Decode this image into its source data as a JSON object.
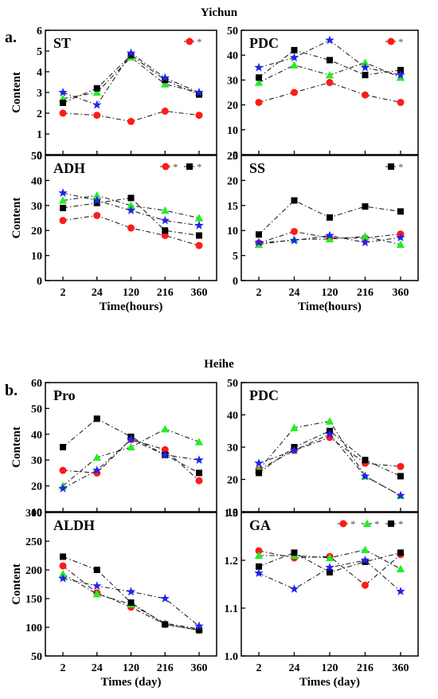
{
  "sections": [
    {
      "label": "a.",
      "title": "Yichun"
    },
    {
      "label": "b.",
      "title": "Heihe"
    }
  ],
  "colors": {
    "red": "#ff1a1a",
    "green": "#22ee22",
    "black": "#000000",
    "blue": "#2222ee",
    "line": "#222222"
  },
  "chart_data": [
    {
      "type": "line",
      "title": "ST",
      "xlabel": "",
      "ylabel": "Content",
      "categories": [
        "2",
        "24",
        "120",
        "216",
        "360"
      ],
      "ylim": [
        0,
        6
      ],
      "yticks": [
        0,
        1,
        2,
        3,
        4,
        5,
        6
      ],
      "series": [
        {
          "marker": "circle",
          "color": "red",
          "values": [
            2.0,
            1.9,
            1.6,
            2.1,
            1.9
          ]
        },
        {
          "marker": "triangle",
          "color": "green",
          "values": [
            2.7,
            3.0,
            4.7,
            3.4,
            3.0
          ]
        },
        {
          "marker": "square",
          "color": "black",
          "values": [
            2.5,
            3.2,
            4.8,
            3.6,
            2.9
          ]
        },
        {
          "marker": "star",
          "color": "blue",
          "values": [
            3.0,
            2.4,
            4.9,
            3.7,
            3.0
          ]
        }
      ],
      "legend": [
        {
          "marker": "circle",
          "color": "red",
          "label": "*"
        }
      ]
    },
    {
      "type": "line",
      "title": "PDC",
      "xlabel": "",
      "ylabel": "",
      "categories": [
        "2",
        "24",
        "120",
        "216",
        "360"
      ],
      "ylim": [
        0,
        50
      ],
      "yticks": [
        0,
        10,
        20,
        30,
        40,
        50
      ],
      "series": [
        {
          "marker": "circle",
          "color": "red",
          "values": [
            21,
            25,
            29,
            24,
            21
          ]
        },
        {
          "marker": "triangle",
          "color": "green",
          "values": [
            29,
            36,
            32,
            37,
            31
          ]
        },
        {
          "marker": "square",
          "color": "black",
          "values": [
            31,
            42,
            38,
            32,
            34
          ]
        },
        {
          "marker": "star",
          "color": "blue",
          "values": [
            35,
            39,
            46,
            35,
            32
          ]
        }
      ],
      "legend": [
        {
          "marker": "circle",
          "color": "red",
          "label": "*"
        }
      ]
    },
    {
      "type": "line",
      "title": "ADH",
      "xlabel": "Time(hours)",
      "ylabel": "Content",
      "categories": [
        "2",
        "24",
        "120",
        "216",
        "360"
      ],
      "ylim": [
        0,
        50
      ],
      "yticks": [
        0,
        10,
        20,
        30,
        40,
        50
      ],
      "series": [
        {
          "marker": "circle",
          "color": "red",
          "values": [
            24,
            26,
            21,
            18,
            14
          ]
        },
        {
          "marker": "triangle",
          "color": "green",
          "values": [
            32,
            34,
            30,
            28,
            25
          ]
        },
        {
          "marker": "square",
          "color": "black",
          "values": [
            29,
            31,
            33,
            20,
            18
          ]
        },
        {
          "marker": "star",
          "color": "blue",
          "values": [
            35,
            32,
            28,
            24,
            22
          ]
        }
      ],
      "legend": [
        {
          "marker": "circle",
          "color": "red",
          "label": "*"
        },
        {
          "marker": "square",
          "color": "black",
          "label": "*"
        }
      ]
    },
    {
      "type": "line",
      "title": "SS",
      "xlabel": "Time(hours)",
      "ylabel": "",
      "categories": [
        "2",
        "24",
        "120",
        "216",
        "360"
      ],
      "ylim": [
        0,
        25
      ],
      "yticks": [
        0,
        5,
        10,
        15,
        20,
        25
      ],
      "series": [
        {
          "marker": "circle",
          "color": "red",
          "values": [
            7.5,
            9.8,
            8.5,
            8.5,
            9.3
          ]
        },
        {
          "marker": "triangle",
          "color": "green",
          "values": [
            7.2,
            8.2,
            8.3,
            8.8,
            7.2
          ]
        },
        {
          "marker": "square",
          "color": "black",
          "values": [
            9.2,
            16.0,
            12.6,
            14.8,
            13.8
          ]
        },
        {
          "marker": "star",
          "color": "blue",
          "values": [
            7.6,
            8.0,
            9.0,
            7.6,
            8.6
          ]
        }
      ],
      "legend": [
        {
          "marker": "square",
          "color": "black",
          "label": "*"
        }
      ]
    },
    {
      "type": "line",
      "title": "Pro",
      "xlabel": "",
      "ylabel": "Content",
      "categories": [
        "2",
        "24",
        "120",
        "216",
        "360"
      ],
      "ylim": [
        10,
        60
      ],
      "yticks": [
        10,
        20,
        30,
        40,
        50,
        60
      ],
      "series": [
        {
          "marker": "circle",
          "color": "red",
          "values": [
            26,
            25,
            38,
            34,
            22
          ]
        },
        {
          "marker": "triangle",
          "color": "green",
          "values": [
            20,
            31,
            35,
            42,
            37
          ]
        },
        {
          "marker": "square",
          "color": "black",
          "values": [
            35,
            46,
            39,
            32,
            25
          ]
        },
        {
          "marker": "star",
          "color": "blue",
          "values": [
            19,
            26,
            38,
            32,
            30
          ]
        }
      ],
      "legend": []
    },
    {
      "type": "line",
      "title": "PDC",
      "xlabel": "",
      "ylabel": "",
      "categories": [
        "2",
        "24",
        "120",
        "216",
        "360"
      ],
      "ylim": [
        10,
        50
      ],
      "yticks": [
        10,
        20,
        30,
        40,
        50
      ],
      "series": [
        {
          "marker": "circle",
          "color": "red",
          "values": [
            23,
            29,
            33,
            25,
            24
          ]
        },
        {
          "marker": "triangle",
          "color": "green",
          "values": [
            23,
            36,
            38,
            21,
            15
          ]
        },
        {
          "marker": "square",
          "color": "black",
          "values": [
            22,
            30,
            35,
            26,
            21
          ]
        },
        {
          "marker": "star",
          "color": "blue",
          "values": [
            25,
            29,
            34,
            21,
            15
          ]
        }
      ],
      "legend": []
    },
    {
      "type": "line",
      "title": "ALDH",
      "xlabel": "Times (day)",
      "ylabel": "Content",
      "categories": [
        "2",
        "24",
        "120",
        "216",
        "360"
      ],
      "ylim": [
        50,
        300
      ],
      "yticks": [
        50,
        100,
        150,
        200,
        250,
        300
      ],
      "series": [
        {
          "marker": "circle",
          "color": "red",
          "values": [
            207,
            160,
            135,
            105,
            95
          ]
        },
        {
          "marker": "triangle",
          "color": "green",
          "values": [
            193,
            158,
            140,
            107,
            97
          ]
        },
        {
          "marker": "square",
          "color": "black",
          "values": [
            223,
            200,
            143,
            105,
            95
          ]
        },
        {
          "marker": "star",
          "color": "blue",
          "values": [
            185,
            172,
            162,
            150,
            102
          ]
        }
      ],
      "legend": []
    },
    {
      "type": "line",
      "title": "GA",
      "xlabel": "Times (day)",
      "ylabel": "",
      "categories": [
        "2",
        "24",
        "120",
        "216",
        "360"
      ],
      "ylim": [
        1.0,
        1.3
      ],
      "yticks": [
        1.0,
        1.1,
        1.2,
        1.3
      ],
      "series": [
        {
          "marker": "circle",
          "color": "red",
          "values": [
            1.22,
            1.205,
            1.208,
            1.148,
            1.212
          ]
        },
        {
          "marker": "triangle",
          "color": "green",
          "values": [
            1.21,
            1.21,
            1.205,
            1.222,
            1.182
          ]
        },
        {
          "marker": "square",
          "color": "black",
          "values": [
            1.187,
            1.216,
            1.175,
            1.197,
            1.216
          ]
        },
        {
          "marker": "star",
          "color": "blue",
          "values": [
            1.173,
            1.14,
            1.185,
            1.2,
            1.135
          ]
        }
      ],
      "legend": [
        {
          "marker": "circle",
          "color": "red",
          "label": "*"
        },
        {
          "marker": "triangle",
          "color": "green",
          "label": "*"
        },
        {
          "marker": "square",
          "color": "black",
          "label": "*"
        }
      ]
    }
  ]
}
